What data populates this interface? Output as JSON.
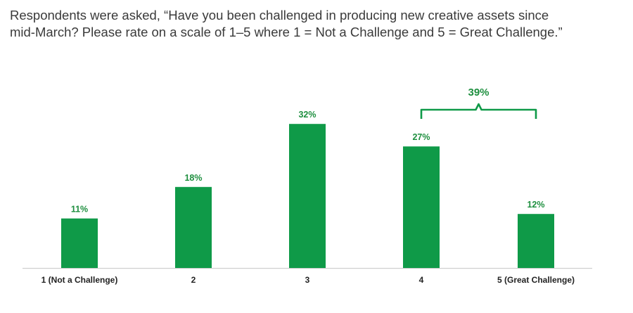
{
  "question": {
    "line1": "Respondents were asked, “Have you been challenged in producing new creative assets since",
    "line2": "mid-March? Please rate on a scale of 1–5 where 1 = Not a Challenge and 5 = Great Challenge.”"
  },
  "colors": {
    "bar": "#0f9a48",
    "label": "#1e8f3f",
    "axis": "#cfcfcf",
    "category": "#222222"
  },
  "chart_data": {
    "type": "bar",
    "categories": [
      "1 (Not a Challenge)",
      "2",
      "3",
      "4",
      "5 (Great Challenge)"
    ],
    "values": [
      11,
      18,
      32,
      27,
      12
    ],
    "value_labels": [
      "11%",
      "18%",
      "32%",
      "27%",
      "12%"
    ],
    "ylim": [
      0,
      40
    ],
    "grid": false,
    "legend": "none",
    "annotation": {
      "text": "39%",
      "spans": [
        "4",
        "5 (Great Challenge)"
      ]
    }
  }
}
